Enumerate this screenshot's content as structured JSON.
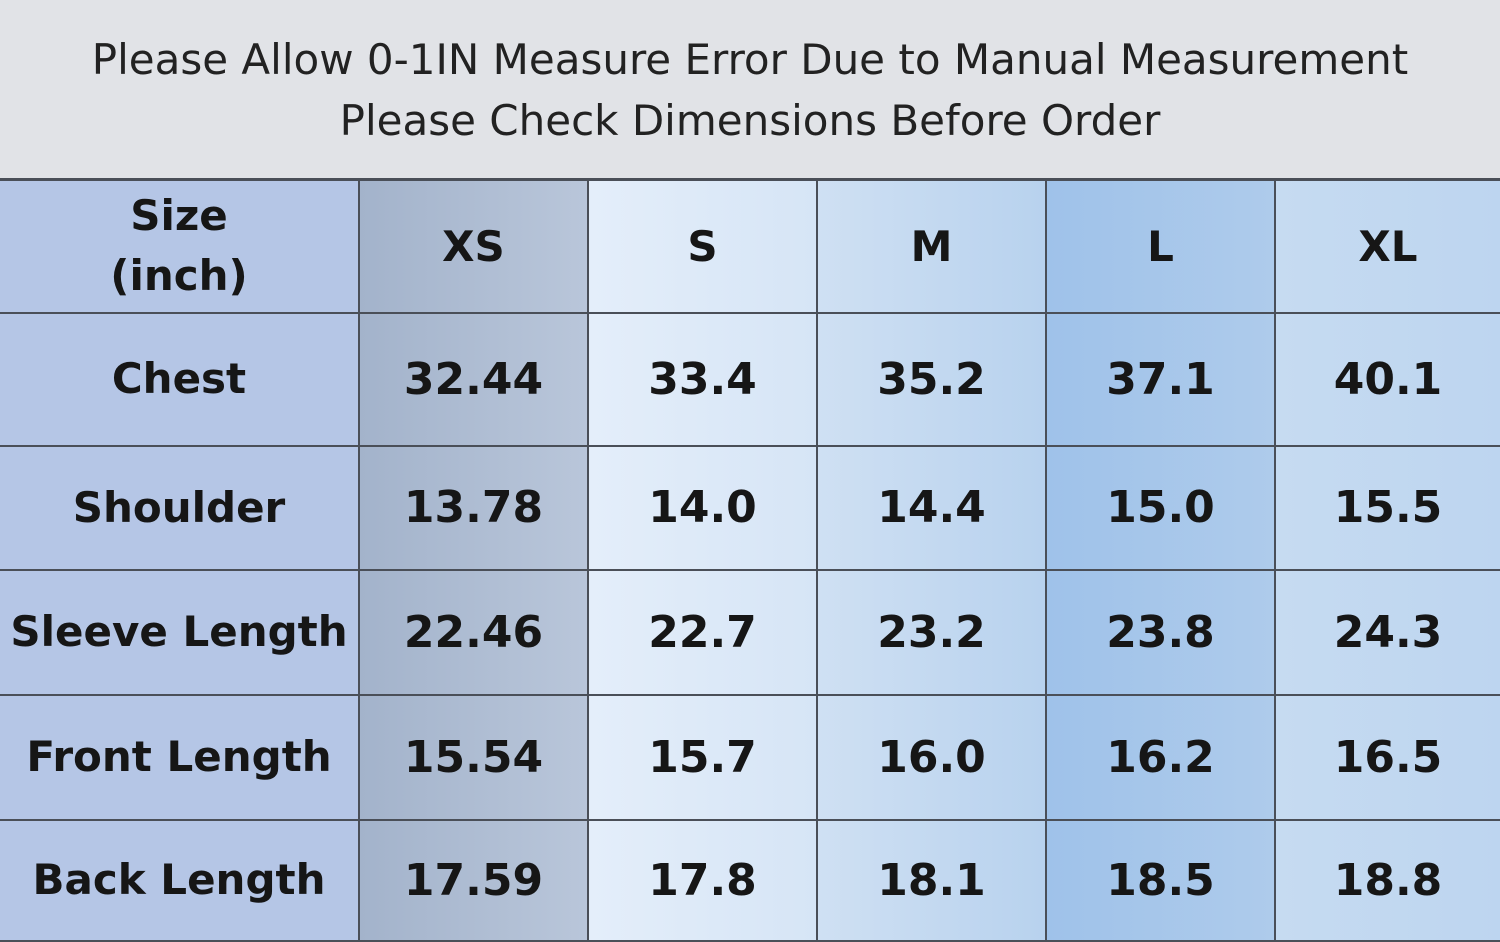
{
  "notice": {
    "line1": "Please Allow 0-1IN Measure Error Due to Manual Measurement",
    "line2": "Please Check Dimensions Before Order"
  },
  "table": {
    "header_label_line1": "Size",
    "header_label_line2": "(inch)",
    "sizes": [
      "XS",
      "S",
      "M",
      "L",
      "XL"
    ],
    "rows": [
      {
        "label": "Chest",
        "values": [
          "32.44",
          "33.4",
          "35.2",
          "37.1",
          "40.1"
        ]
      },
      {
        "label": "Shoulder",
        "values": [
          "13.78",
          "14.0",
          "14.4",
          "15.0",
          "15.5"
        ]
      },
      {
        "label": "Sleeve Length",
        "values": [
          "22.46",
          "22.7",
          "23.2",
          "23.8",
          "24.3"
        ]
      },
      {
        "label": "Front Length",
        "values": [
          "15.54",
          "15.7",
          "16.0",
          "16.2",
          "16.5"
        ]
      },
      {
        "label": "Back Length",
        "values": [
          "17.59",
          "17.8",
          "18.1",
          "18.5",
          "18.8"
        ]
      }
    ]
  },
  "colors": {
    "label_column": "#b5c6e6",
    "xs_column": "#a9b8ce",
    "s_column": "#e0ebf8",
    "m_column": "#c4d9f1",
    "l_column": "#a6c6eb",
    "xl_column": "#c2d8f0",
    "grid_lines": "#4a4f58"
  }
}
